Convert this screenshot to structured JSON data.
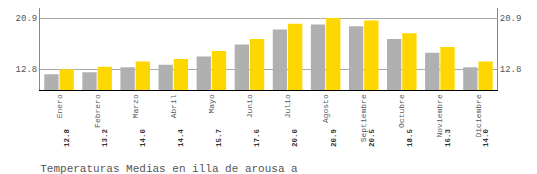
{
  "chart_data": {
    "type": "bar",
    "title": "Temperaturas Medias en illa de arousa a",
    "categories": [
      "Enero",
      "Febrero",
      "Marzo",
      "Abril",
      "Mayo",
      "Junio",
      "Julio",
      "Agosto",
      "Septiembre",
      "Octubre",
      "Noviembre",
      "Diciembre"
    ],
    "series": [
      {
        "color": "#B0B0B0",
        "values": [
          12.0,
          12.3,
          13.1,
          13.5,
          14.8,
          16.7,
          19.1,
          19.9,
          19.6,
          17.6,
          15.4,
          13.1
        ]
      },
      {
        "color": "#FFD700",
        "values": [
          12.8,
          13.2,
          14.0,
          14.4,
          15.7,
          17.6,
          20.0,
          20.9,
          20.5,
          18.5,
          16.3,
          14.0
        ],
        "value_labels": [
          "12.8",
          "13.2",
          "14.0",
          "14.4",
          "15.7",
          "17.6",
          "20.0",
          "20.9",
          "20.5",
          "18.5",
          "16.3",
          "14.0"
        ],
        "data_labels": true
      }
    ],
    "ylim": [
      9.5,
      22.5
    ],
    "yticks": [
      12.8,
      20.9
    ],
    "y2lim": [
      9.5,
      22.5
    ],
    "y2ticks": [
      12.8,
      20.9
    ],
    "grid": true
  }
}
